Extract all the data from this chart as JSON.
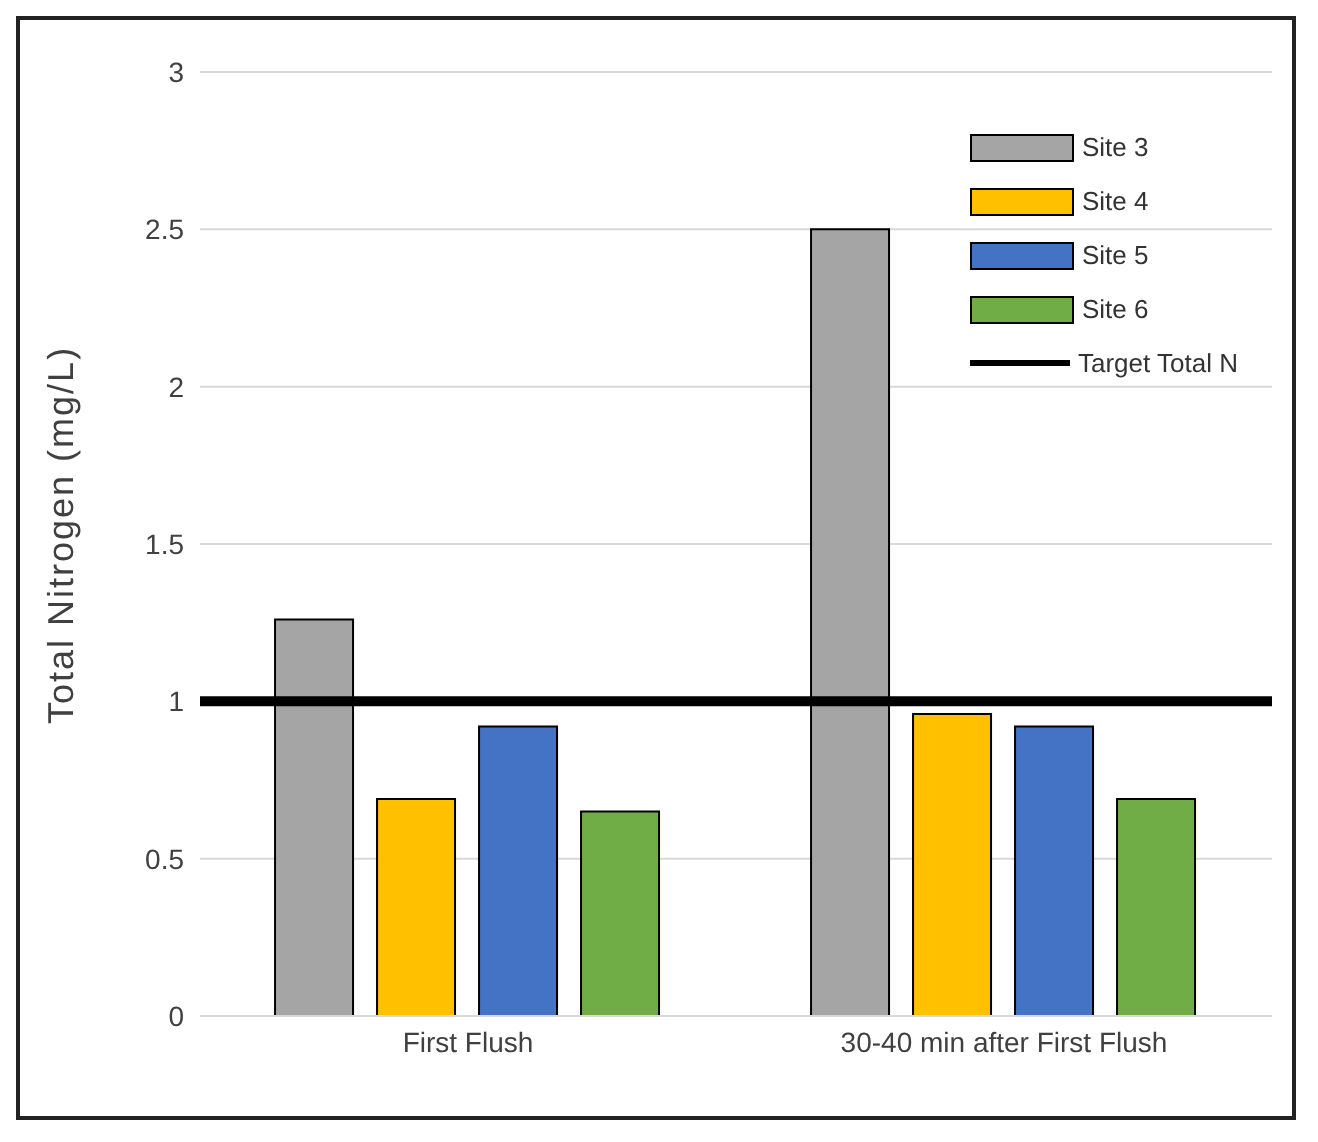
{
  "chart_data": {
    "type": "bar",
    "ylabel": "Total Nitrogen (mg/L)",
    "categories": [
      "First Flush",
      "30-40 min after First Flush"
    ],
    "series": [
      {
        "name": "Site 3",
        "color": "#a5a5a5",
        "values": [
          1.26,
          2.5
        ]
      },
      {
        "name": "Site 4",
        "color": "#ffc000",
        "values": [
          0.69,
          0.96
        ]
      },
      {
        "name": "Site 5",
        "color": "#4472c4",
        "values": [
          0.92,
          0.92
        ]
      },
      {
        "name": "Site 6",
        "color": "#70ad47",
        "values": [
          0.65,
          0.69
        ]
      }
    ],
    "ref_lines": [
      {
        "axis": "y",
        "value": 1,
        "label": "Target Total N",
        "color": "#000000"
      }
    ],
    "ylim": [
      0,
      3
    ],
    "yticks": [
      0,
      0.5,
      1,
      1.5,
      2,
      2.5,
      3
    ],
    "grid": "y",
    "legend": "top right"
  }
}
